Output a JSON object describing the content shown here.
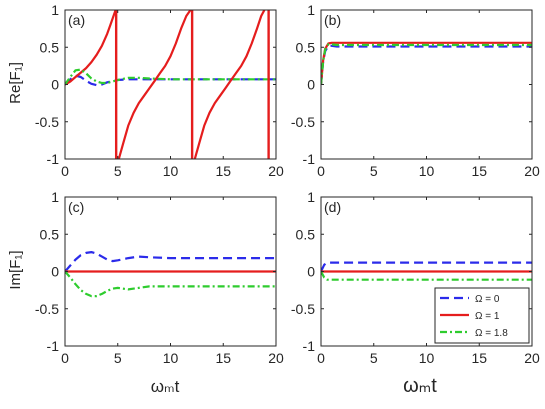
{
  "figure": {
    "ylabel_top": "Re[F₁]",
    "ylabel_bottom": "Im[F₁]",
    "xlabel": "ωₘt"
  },
  "legend": {
    "placement": "bottom-right of panel (d)",
    "entries": [
      "Ω = 0",
      "Ω = 1",
      "Ω = 1.8"
    ]
  },
  "series_styles": [
    {
      "name": "Ω = 0",
      "color": "#2b2bea",
      "dash": "dashed"
    },
    {
      "name": "Ω = 1",
      "color": "#e51d1d",
      "dash": "solid"
    },
    {
      "name": "Ω = 1.8",
      "color": "#2ecc2e",
      "dash": "dash-dot"
    }
  ],
  "chart_data": [
    {
      "type": "line",
      "panel_label": "(a)",
      "xlim": [
        0,
        20
      ],
      "ylim": [
        -1,
        1
      ],
      "xticks": [
        0,
        5,
        10,
        15,
        20
      ],
      "yticks": [
        -1,
        -0.5,
        0,
        0.5,
        1
      ],
      "xticklabels": [
        "0",
        "5",
        "10",
        "15",
        "20"
      ],
      "yticklabels": [
        "-1",
        "-0.5",
        "0",
        "0.5",
        "1"
      ],
      "series": [
        {
          "name": "Ω = 0",
          "x": [
            0,
            0.5,
            1,
            1.5,
            2,
            2.5,
            3,
            3.5,
            4,
            5,
            6,
            8,
            10,
            12,
            15,
            20
          ],
          "y": [
            0,
            0.07,
            0.12,
            0.1,
            0.05,
            0.01,
            -0.01,
            0.0,
            0.03,
            0.06,
            0.07,
            0.07,
            0.07,
            0.07,
            0.07,
            0.07
          ]
        },
        {
          "name": "Ω = 1",
          "x": [
            0,
            0.5,
            1,
            1.5,
            2,
            2.5,
            3,
            3.5,
            4,
            4.3,
            4.6,
            4.8,
            4.95
          ],
          "y": [
            0,
            0.04,
            0.1,
            0.16,
            0.22,
            0.3,
            0.4,
            0.52,
            0.68,
            0.8,
            0.92,
            1.0,
            1.0
          ]
        },
        {
          "name": "Ω = 1.8",
          "x": [
            0,
            0.5,
            1,
            1.5,
            2,
            2.5,
            3,
            3.5,
            4,
            4.5,
            5,
            6,
            7,
            8,
            10,
            12,
            15,
            20
          ],
          "y": [
            0,
            0.1,
            0.19,
            0.2,
            0.15,
            0.08,
            0.04,
            0.02,
            0.02,
            0.04,
            0.06,
            0.09,
            0.09,
            0.08,
            0.07,
            0.07,
            0.07,
            0.07
          ]
        }
      ],
      "series_extra": {
        "Ω = 1 branches": [
          {
            "x": [
              5.1,
              5.5,
              6,
              6.5,
              7,
              7.5,
              8,
              8.5,
              9,
              9.5,
              10,
              10.5,
              11,
              11.5,
              11.9
            ],
            "y": [
              -1.0,
              -0.8,
              -0.55,
              -0.38,
              -0.25,
              -0.15,
              -0.05,
              0.05,
              0.15,
              0.25,
              0.38,
              0.55,
              0.75,
              0.92,
              1.0
            ]
          },
          {
            "x": [
              12.3,
              12.7,
              13.2,
              13.7,
              14.2,
              14.7,
              15.2,
              15.7,
              16.2,
              16.7,
              17.2,
              17.7,
              18.2,
              18.6,
              18.9
            ],
            "y": [
              -1.0,
              -0.8,
              -0.55,
              -0.38,
              -0.25,
              -0.15,
              -0.05,
              0.05,
              0.15,
              0.25,
              0.38,
              0.55,
              0.75,
              0.92,
              1.0
            ]
          }
        ],
        "Ω = 1 vertical lines at x": [
          4.85,
          12.05,
          19.3
        ]
      }
    },
    {
      "type": "line",
      "panel_label": "(b)",
      "xlim": [
        0,
        20
      ],
      "ylim": [
        -1,
        1
      ],
      "xticks": [
        0,
        5,
        10,
        15,
        20
      ],
      "yticks": [
        -1,
        -0.5,
        0,
        0.5,
        1
      ],
      "xticklabels": [
        "0",
        "5",
        "10",
        "15",
        "20"
      ],
      "yticklabels": [
        "-1",
        "-0.5",
        "0",
        "0.5",
        "1"
      ],
      "series": [
        {
          "name": "Ω = 0",
          "x": [
            0,
            0.2,
            0.4,
            0.7,
            1,
            1.5,
            2,
            3,
            5,
            10,
            15,
            20
          ],
          "y": [
            0,
            0.3,
            0.45,
            0.52,
            0.52,
            0.51,
            0.51,
            0.51,
            0.51,
            0.51,
            0.51,
            0.51
          ]
        },
        {
          "name": "Ω = 1",
          "x": [
            0,
            0.2,
            0.4,
            0.7,
            1,
            1.5,
            2,
            3,
            5,
            10,
            15,
            20
          ],
          "y": [
            0,
            0.32,
            0.48,
            0.55,
            0.56,
            0.56,
            0.56,
            0.56,
            0.56,
            0.56,
            0.56,
            0.56
          ]
        },
        {
          "name": "Ω = 1.8",
          "x": [
            0,
            0.2,
            0.4,
            0.7,
            1,
            1.5,
            2,
            3,
            5,
            10,
            15,
            20
          ],
          "y": [
            0,
            0.31,
            0.47,
            0.54,
            0.54,
            0.53,
            0.53,
            0.53,
            0.53,
            0.53,
            0.53,
            0.53
          ]
        }
      ]
    },
    {
      "type": "line",
      "panel_label": "(c)",
      "xlim": [
        0,
        20
      ],
      "ylim": [
        -1,
        1
      ],
      "xticks": [
        0,
        5,
        10,
        15,
        20
      ],
      "yticks": [
        -1,
        -0.5,
        0,
        0.5,
        1
      ],
      "xticklabels": [
        "0",
        "5",
        "10",
        "15",
        "20"
      ],
      "yticklabels": [
        "-1",
        "-0.5",
        "0",
        "0.5",
        "1"
      ],
      "series": [
        {
          "name": "Ω = 0",
          "x": [
            0,
            0.5,
            1,
            1.5,
            2,
            2.5,
            3,
            3.5,
            4,
            4.5,
            5,
            6,
            7,
            8,
            10,
            12,
            15,
            20
          ],
          "y": [
            0,
            0.08,
            0.16,
            0.22,
            0.25,
            0.26,
            0.24,
            0.2,
            0.16,
            0.14,
            0.15,
            0.18,
            0.2,
            0.19,
            0.18,
            0.18,
            0.18,
            0.18
          ]
        },
        {
          "name": "Ω = 1",
          "x": [
            0,
            5,
            10,
            15,
            20
          ],
          "y": [
            0,
            0,
            0,
            0,
            0
          ]
        },
        {
          "name": "Ω = 1.8",
          "x": [
            0,
            0.5,
            1,
            1.5,
            2,
            2.5,
            3,
            3.5,
            4,
            4.5,
            5,
            6,
            7,
            8,
            10,
            12,
            15,
            20
          ],
          "y": [
            0,
            -0.08,
            -0.17,
            -0.25,
            -0.3,
            -0.33,
            -0.33,
            -0.3,
            -0.26,
            -0.23,
            -0.22,
            -0.24,
            -0.22,
            -0.2,
            -0.2,
            -0.2,
            -0.2,
            -0.2
          ]
        }
      ]
    },
    {
      "type": "line",
      "panel_label": "(d)",
      "xlim": [
        0,
        20
      ],
      "ylim": [
        -1,
        1
      ],
      "xticks": [
        0,
        5,
        10,
        15,
        20
      ],
      "yticks": [
        -1,
        -0.5,
        0,
        0.5,
        1
      ],
      "xticklabels": [
        "0",
        "5",
        "10",
        "15",
        "20"
      ],
      "yticklabels": [
        "-1",
        "-0.5",
        "0",
        "0.5",
        "1"
      ],
      "series": [
        {
          "name": "Ω = 0",
          "x": [
            0,
            0.3,
            0.6,
            1,
            2,
            5,
            10,
            15,
            20
          ],
          "y": [
            0,
            0.09,
            0.12,
            0.12,
            0.12,
            0.12,
            0.12,
            0.12,
            0.12
          ]
        },
        {
          "name": "Ω = 1",
          "x": [
            0,
            5,
            10,
            15,
            20
          ],
          "y": [
            0,
            0,
            0,
            0,
            0
          ]
        },
        {
          "name": "Ω = 1.8",
          "x": [
            0,
            0.3,
            0.6,
            1,
            2,
            5,
            10,
            15,
            20
          ],
          "y": [
            0,
            -0.08,
            -0.11,
            -0.11,
            -0.11,
            -0.11,
            -0.11,
            -0.11,
            -0.11
          ]
        }
      ]
    }
  ]
}
